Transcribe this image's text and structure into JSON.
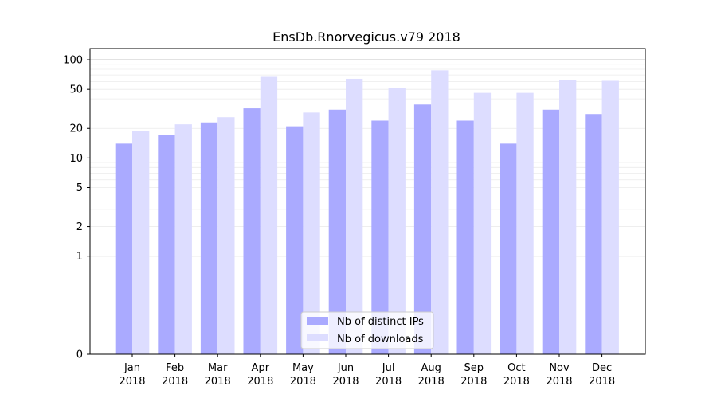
{
  "chart_data": {
    "type": "bar",
    "title": "EnsDb.Rnorvegicus.v79 2018",
    "xlabel": "",
    "ylabel": "",
    "scale": "symlog",
    "ylim": [
      0,
      130
    ],
    "grid": true,
    "legend_position": "bottom-center",
    "categories": [
      [
        "Jan",
        "2018"
      ],
      [
        "Feb",
        "2018"
      ],
      [
        "Mar",
        "2018"
      ],
      [
        "Apr",
        "2018"
      ],
      [
        "May",
        "2018"
      ],
      [
        "Jun",
        "2018"
      ],
      [
        "Jul",
        "2018"
      ],
      [
        "Aug",
        "2018"
      ],
      [
        "Sep",
        "2018"
      ],
      [
        "Oct",
        "2018"
      ],
      [
        "Nov",
        "2018"
      ],
      [
        "Dec",
        "2018"
      ]
    ],
    "y_ticks": [
      0,
      1,
      2,
      5,
      10,
      20,
      50,
      100
    ],
    "series": [
      {
        "name": "Nb of distinct IPs",
        "color": "#aaaaff",
        "values": [
          14,
          17,
          23,
          32,
          21,
          31,
          24,
          35,
          24,
          14,
          31,
          28
        ]
      },
      {
        "name": "Nb of downloads",
        "color": "#ddddff",
        "values": [
          19,
          22,
          26,
          67,
          29,
          64,
          52,
          78,
          46,
          46,
          62,
          61
        ]
      }
    ]
  }
}
